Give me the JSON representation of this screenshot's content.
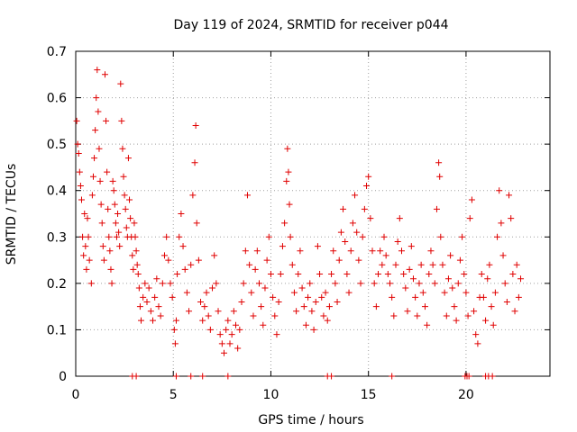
{
  "chart_data": {
    "type": "scatter",
    "title": "Day 119 of 2024, SRMTID for receiver p044",
    "xlabel": "GPS time / hours",
    "ylabel": "SRMTID / TECUs",
    "xlim": [
      0,
      24.3
    ],
    "ylim": [
      0,
      0.7
    ],
    "xticks": [
      0,
      5,
      10,
      15,
      20
    ],
    "yticks": [
      0,
      0.1,
      0.2,
      0.3,
      0.4,
      0.5,
      0.6,
      0.7
    ],
    "ytick_labels": [
      "0",
      "0.1",
      "0.2",
      "0.3",
      "0.4",
      "0.5",
      "0.6",
      "0.7"
    ],
    "grid": true,
    "marker": "+",
    "marker_color": "#e00000",
    "series": [
      {
        "name": "SRMTID",
        "points": [
          [
            0.05,
            0.55
          ],
          [
            0.1,
            0.5
          ],
          [
            0.15,
            0.48
          ],
          [
            0.2,
            0.44
          ],
          [
            0.25,
            0.41
          ],
          [
            0.3,
            0.38
          ],
          [
            0.35,
            0.3
          ],
          [
            0.4,
            0.26
          ],
          [
            0.45,
            0.35
          ],
          [
            0.5,
            0.28
          ],
          [
            0.55,
            0.23
          ],
          [
            0.6,
            0.34
          ],
          [
            0.65,
            0.3
          ],
          [
            0.7,
            0.25
          ],
          [
            0.8,
            0.2
          ],
          [
            0.85,
            0.39
          ],
          [
            0.9,
            0.43
          ],
          [
            0.95,
            0.47
          ],
          [
            1.0,
            0.53
          ],
          [
            1.05,
            0.6
          ],
          [
            1.1,
            0.66
          ],
          [
            1.15,
            0.57
          ],
          [
            1.2,
            0.49
          ],
          [
            1.25,
            0.42
          ],
          [
            1.3,
            0.37
          ],
          [
            1.35,
            0.33
          ],
          [
            1.4,
            0.28
          ],
          [
            1.45,
            0.25
          ],
          [
            1.5,
            0.65
          ],
          [
            1.55,
            0.55
          ],
          [
            1.6,
            0.44
          ],
          [
            1.65,
            0.36
          ],
          [
            1.7,
            0.3
          ],
          [
            1.75,
            0.27
          ],
          [
            1.8,
            0.23
          ],
          [
            1.85,
            0.2
          ],
          [
            1.9,
            0.42
          ],
          [
            1.95,
            0.4
          ],
          [
            2.0,
            0.37
          ],
          [
            2.05,
            0.33
          ],
          [
            2.1,
            0.3
          ],
          [
            2.15,
            0.35
          ],
          [
            2.2,
            0.31
          ],
          [
            2.25,
            0.28
          ],
          [
            2.3,
            0.63
          ],
          [
            2.35,
            0.55
          ],
          [
            2.4,
            0.49
          ],
          [
            2.45,
            0.43
          ],
          [
            2.5,
            0.39
          ],
          [
            2.55,
            0.36
          ],
          [
            2.6,
            0.32
          ],
          [
            2.65,
            0.3
          ],
          [
            2.7,
            0.47
          ],
          [
            2.75,
            0.38
          ],
          [
            2.8,
            0.34
          ],
          [
            2.85,
            0.3
          ],
          [
            2.9,
            0.26
          ],
          [
            2.95,
            0.23
          ],
          [
            3.0,
            0.33
          ],
          [
            3.05,
            0.3
          ],
          [
            3.1,
            0.27
          ],
          [
            3.15,
            0.24
          ],
          [
            3.2,
            0.22
          ],
          [
            3.25,
            0.19
          ],
          [
            3.3,
            0.15
          ],
          [
            3.35,
            0.12
          ],
          [
            3.45,
            0.17
          ],
          [
            3.55,
            0.2
          ],
          [
            3.65,
            0.16
          ],
          [
            3.75,
            0.19
          ],
          [
            3.85,
            0.14
          ],
          [
            3.95,
            0.12
          ],
          [
            4.05,
            0.17
          ],
          [
            4.15,
            0.21
          ],
          [
            4.25,
            0.15
          ],
          [
            4.35,
            0.13
          ],
          [
            4.45,
            0.2
          ],
          [
            4.55,
            0.26
          ],
          [
            4.65,
            0.3
          ],
          [
            4.75,
            0.25
          ],
          [
            4.85,
            0.2
          ],
          [
            4.95,
            0.17
          ],
          [
            5.05,
            0.1
          ],
          [
            5.1,
            0.07
          ],
          [
            5.15,
            0.12
          ],
          [
            5.2,
            0.22
          ],
          [
            5.3,
            0.3
          ],
          [
            5.4,
            0.35
          ],
          [
            5.5,
            0.28
          ],
          [
            5.6,
            0.23
          ],
          [
            5.7,
            0.18
          ],
          [
            5.8,
            0.14
          ],
          [
            5.9,
            0.24
          ],
          [
            6.0,
            0.39
          ],
          [
            6.1,
            0.46
          ],
          [
            6.15,
            0.54
          ],
          [
            6.2,
            0.33
          ],
          [
            6.3,
            0.25
          ],
          [
            6.4,
            0.16
          ],
          [
            6.5,
            0.12
          ],
          [
            6.6,
            0.15
          ],
          [
            6.7,
            0.18
          ],
          [
            6.8,
            0.13
          ],
          [
            6.9,
            0.1
          ],
          [
            7.0,
            0.19
          ],
          [
            7.1,
            0.26
          ],
          [
            7.2,
            0.2
          ],
          [
            7.3,
            0.14
          ],
          [
            7.4,
            0.09
          ],
          [
            7.5,
            0.07
          ],
          [
            7.6,
            0.05
          ],
          [
            7.7,
            0.1
          ],
          [
            7.8,
            0.12
          ],
          [
            7.9,
            0.07
          ],
          [
            8.0,
            0.09
          ],
          [
            8.1,
            0.14
          ],
          [
            8.2,
            0.11
          ],
          [
            8.3,
            0.06
          ],
          [
            8.4,
            0.1
          ],
          [
            8.5,
            0.16
          ],
          [
            8.6,
            0.2
          ],
          [
            8.7,
            0.27
          ],
          [
            8.8,
            0.39
          ],
          [
            8.9,
            0.24
          ],
          [
            9.0,
            0.18
          ],
          [
            9.1,
            0.13
          ],
          [
            9.2,
            0.23
          ],
          [
            9.3,
            0.27
          ],
          [
            9.4,
            0.2
          ],
          [
            9.5,
            0.15
          ],
          [
            9.6,
            0.11
          ],
          [
            9.7,
            0.19
          ],
          [
            9.8,
            0.25
          ],
          [
            9.9,
            0.3
          ],
          [
            10.0,
            0.22
          ],
          [
            10.1,
            0.17
          ],
          [
            10.2,
            0.13
          ],
          [
            10.3,
            0.09
          ],
          [
            10.4,
            0.16
          ],
          [
            10.5,
            0.22
          ],
          [
            10.6,
            0.28
          ],
          [
            10.7,
            0.33
          ],
          [
            10.8,
            0.42
          ],
          [
            10.85,
            0.49
          ],
          [
            10.9,
            0.44
          ],
          [
            10.95,
            0.37
          ],
          [
            11.0,
            0.3
          ],
          [
            11.1,
            0.24
          ],
          [
            11.2,
            0.18
          ],
          [
            11.3,
            0.14
          ],
          [
            11.4,
            0.22
          ],
          [
            11.5,
            0.27
          ],
          [
            11.6,
            0.19
          ],
          [
            11.7,
            0.15
          ],
          [
            11.8,
            0.11
          ],
          [
            11.9,
            0.17
          ],
          [
            12.0,
            0.2
          ],
          [
            12.1,
            0.14
          ],
          [
            12.2,
            0.1
          ],
          [
            12.3,
            0.16
          ],
          [
            12.4,
            0.28
          ],
          [
            12.5,
            0.22
          ],
          [
            12.6,
            0.17
          ],
          [
            12.7,
            0.13
          ],
          [
            12.8,
            0.18
          ],
          [
            12.9,
            0.12
          ],
          [
            13.0,
            0.15
          ],
          [
            13.1,
            0.22
          ],
          [
            13.2,
            0.27
          ],
          [
            13.3,
            0.2
          ],
          [
            13.4,
            0.16
          ],
          [
            13.5,
            0.25
          ],
          [
            13.6,
            0.31
          ],
          [
            13.7,
            0.36
          ],
          [
            13.8,
            0.29
          ],
          [
            13.9,
            0.22
          ],
          [
            14.0,
            0.18
          ],
          [
            14.1,
            0.27
          ],
          [
            14.2,
            0.33
          ],
          [
            14.3,
            0.39
          ],
          [
            14.4,
            0.31
          ],
          [
            14.5,
            0.25
          ],
          [
            14.6,
            0.2
          ],
          [
            14.7,
            0.3
          ],
          [
            14.8,
            0.36
          ],
          [
            14.9,
            0.41
          ],
          [
            15.0,
            0.43
          ],
          [
            15.1,
            0.34
          ],
          [
            15.2,
            0.27
          ],
          [
            15.3,
            0.2
          ],
          [
            15.4,
            0.15
          ],
          [
            15.5,
            0.22
          ],
          [
            15.6,
            0.27
          ],
          [
            15.7,
            0.24
          ],
          [
            15.8,
            0.3
          ],
          [
            15.9,
            0.26
          ],
          [
            16.0,
            0.22
          ],
          [
            16.1,
            0.2
          ],
          [
            16.2,
            0.17
          ],
          [
            16.3,
            0.13
          ],
          [
            16.4,
            0.24
          ],
          [
            16.5,
            0.29
          ],
          [
            16.6,
            0.34
          ],
          [
            16.7,
            0.27
          ],
          [
            16.8,
            0.22
          ],
          [
            16.9,
            0.19
          ],
          [
            17.0,
            0.14
          ],
          [
            17.1,
            0.23
          ],
          [
            17.2,
            0.28
          ],
          [
            17.3,
            0.21
          ],
          [
            17.4,
            0.17
          ],
          [
            17.5,
            0.13
          ],
          [
            17.6,
            0.2
          ],
          [
            17.7,
            0.24
          ],
          [
            17.8,
            0.18
          ],
          [
            17.9,
            0.15
          ],
          [
            18.0,
            0.11
          ],
          [
            18.1,
            0.22
          ],
          [
            18.2,
            0.27
          ],
          [
            18.3,
            0.24
          ],
          [
            18.4,
            0.2
          ],
          [
            18.5,
            0.36
          ],
          [
            18.6,
            0.46
          ],
          [
            18.65,
            0.43
          ],
          [
            18.7,
            0.3
          ],
          [
            18.8,
            0.24
          ],
          [
            18.9,
            0.18
          ],
          [
            19.0,
            0.13
          ],
          [
            19.1,
            0.21
          ],
          [
            19.2,
            0.26
          ],
          [
            19.3,
            0.19
          ],
          [
            19.4,
            0.15
          ],
          [
            19.5,
            0.12
          ],
          [
            19.6,
            0.2
          ],
          [
            19.7,
            0.25
          ],
          [
            19.8,
            0.3
          ],
          [
            19.9,
            0.22
          ],
          [
            20.0,
            0.18
          ],
          [
            20.1,
            0.13
          ],
          [
            20.2,
            0.34
          ],
          [
            20.3,
            0.38
          ],
          [
            20.4,
            0.14
          ],
          [
            20.5,
            0.09
          ],
          [
            20.6,
            0.07
          ],
          [
            20.7,
            0.17
          ],
          [
            20.8,
            0.22
          ],
          [
            20.9,
            0.17
          ],
          [
            21.0,
            0.12
          ],
          [
            21.1,
            0.21
          ],
          [
            21.2,
            0.24
          ],
          [
            21.3,
            0.15
          ],
          [
            21.4,
            0.11
          ],
          [
            21.5,
            0.18
          ],
          [
            21.6,
            0.3
          ],
          [
            21.7,
            0.4
          ],
          [
            21.8,
            0.33
          ],
          [
            21.9,
            0.26
          ],
          [
            22.0,
            0.2
          ],
          [
            22.1,
            0.16
          ],
          [
            22.2,
            0.39
          ],
          [
            22.3,
            0.34
          ],
          [
            22.4,
            0.22
          ],
          [
            22.5,
            0.14
          ],
          [
            22.6,
            0.24
          ],
          [
            22.7,
            0.17
          ],
          [
            22.8,
            0.21
          ]
        ]
      }
    ],
    "zero_points_x": [
      2.9,
      3.1,
      5.15,
      5.9,
      6.5,
      7.8,
      12.9,
      13.1,
      16.2,
      19.95,
      20.05,
      20.15,
      21.0,
      21.15,
      21.35
    ]
  }
}
